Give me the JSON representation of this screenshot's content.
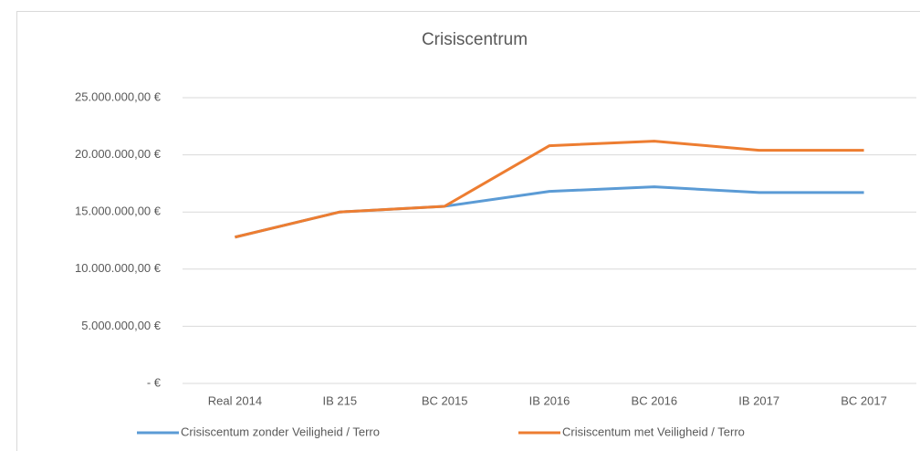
{
  "chart_data": {
    "type": "line",
    "title": "Crisiscentrum",
    "categories": [
      "Real 2014",
      "IB 215",
      "BC 2015",
      "IB 2016",
      "BC 2016",
      "IB 2017",
      "BC 2017"
    ],
    "series": [
      {
        "name": "Crisiscentum zonder Veiligheid / Terro",
        "color": "#5b9bd5",
        "values": [
          12800000,
          15000000,
          15500000,
          16800000,
          17200000,
          16700000,
          16700000
        ]
      },
      {
        "name": "Crisiscentum met Veiligheid / Terro",
        "color": "#ed7d31",
        "values": [
          12800000,
          15000000,
          15500000,
          20800000,
          21200000,
          20400000,
          20400000
        ]
      }
    ],
    "ylim": [
      0,
      25000000
    ],
    "yticks": [
      {
        "value": 0,
        "label": "-  €"
      },
      {
        "value": 5000000,
        "label": "5.000.000,00 €"
      },
      {
        "value": 10000000,
        "label": "10.000.000,00 €"
      },
      {
        "value": 15000000,
        "label": "15.000.000,00 €"
      },
      {
        "value": 20000000,
        "label": "20.000.000,00 €"
      },
      {
        "value": 25000000,
        "label": "25.000.000,00 €"
      }
    ],
    "grid": true
  }
}
